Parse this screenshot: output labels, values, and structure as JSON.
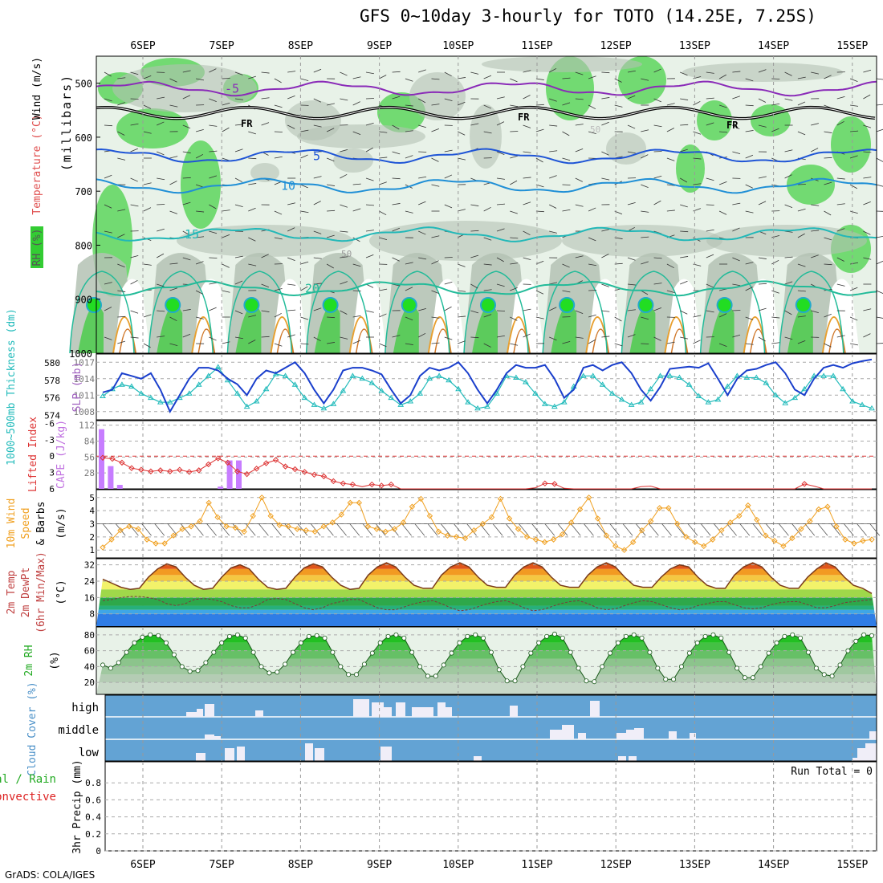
{
  "title": "GFS 0~10day 3-hourly for TOTO (14.25E, 7.25S)",
  "footer": "GrADS: COLA/IGES",
  "run_total_label": "Run Total = 0",
  "colors": {
    "rh_green": "#33cc33",
    "gray": "#b4c2b4",
    "pale": "#e8f2e8",
    "cloud_blue": "#63a3d4",
    "sky_blue": "#3f9ee6",
    "lifted_index": "#dd3333",
    "cape": "#c77dff",
    "slp": "#1a3fcc",
    "thickness": "#22bbbb",
    "wind_speed": "#f0a020"
  },
  "chart_data": [
    {
      "type": "heatmap",
      "panel": "upper-air",
      "x_dates": [
        "6SEP",
        "7SEP",
        "8SEP",
        "9SEP",
        "10SEP",
        "11SEP",
        "12SEP",
        "13SEP",
        "14SEP",
        "15SEP"
      ],
      "ylabel_series": [
        "RH (%)",
        "Temperature (°C)",
        "Wind (m/s)"
      ],
      "ylabel_units": "(millibars)",
      "yticks": [
        500,
        600,
        700,
        800,
        900,
        1000
      ],
      "ylim": [
        1000,
        450
      ],
      "freezing_label": "FR",
      "rh_contour_labels": [
        "50",
        "50"
      ],
      "temperature_isotherms": [
        {
          "value": -5,
          "label": "-5",
          "pressure": 510
        },
        {
          "value": 5,
          "label": "5",
          "pressure": 635
        },
        {
          "value": 10,
          "label": "10",
          "pressure": 690
        },
        {
          "value": 15,
          "label": "15",
          "pressure": 780
        },
        {
          "value": 20,
          "label": "20",
          "pressure": 880
        }
      ]
    },
    {
      "type": "line",
      "panel": "slp-thickness",
      "ylabel_left": "1000~500mb Thickness (dm)",
      "ylabel_right": "SLP (mb)",
      "yticks_left": [
        574,
        576,
        578,
        580
      ],
      "yticks_right": [
        1008,
        1011,
        1014,
        1017
      ],
      "series": [
        {
          "name": "SLP (mb)",
          "values": [
            1011.5,
            1012,
            1015,
            1014.5,
            1014,
            1015,
            1012,
            1008,
            1011,
            1014,
            1016,
            1016,
            1015.5,
            1014,
            1013,
            1011,
            1014,
            1015.5,
            1015,
            1016,
            1017,
            1015,
            1012,
            1009.5,
            1012,
            1015.5,
            1016,
            1016,
            1015.5,
            1014.8,
            1012,
            1009.5,
            1011,
            1014.5,
            1016,
            1015.5,
            1016,
            1017,
            1015,
            1012,
            1009.5,
            1012,
            1015,
            1016.5,
            1016,
            1016,
            1016.5,
            1014,
            1010.5,
            1012,
            1016,
            1016.5,
            1015.5,
            1016.5,
            1017,
            1015,
            1012,
            1010,
            1012.5,
            1015.8,
            1016,
            1016.2,
            1016,
            1016.8,
            1014,
            1011,
            1014,
            1015.5,
            1015.8,
            1016.5,
            1017,
            1015,
            1012,
            1011,
            1014,
            1016,
            1016.5,
            1016,
            1016.8,
            1017.2,
            1017.5
          ]
        },
        {
          "name": "1000~500mb Thickness (dm)",
          "values": [
            576.2,
            577,
            577.5,
            577.3,
            576.5,
            576,
            575.5,
            575.5,
            576,
            576.5,
            577.5,
            578.5,
            579.5,
            578,
            576.5,
            575,
            575.6,
            577,
            578.7,
            578.5,
            577.5,
            576,
            575.2,
            574.8,
            575.3,
            576.8,
            578.5,
            578.2,
            577.7,
            576.8,
            576,
            575.2,
            575.6,
            576.5,
            578.2,
            578.5,
            578,
            577,
            575.5,
            574.8,
            575,
            576.5,
            578.5,
            578.3,
            577.8,
            576.5,
            575.3,
            575,
            575.5,
            577.3,
            578.5,
            578.5,
            577.5,
            576.5,
            575.8,
            575.2,
            575.5,
            577,
            578.5,
            578.5,
            578.3,
            577.5,
            576.2,
            575.5,
            575.8,
            577.3,
            578.5,
            578.3,
            578.3,
            577.7,
            576.3,
            575.4,
            576,
            577,
            578.5,
            578.5,
            578.5,
            577,
            575.6,
            575.2,
            574.8
          ]
        }
      ]
    },
    {
      "type": "bar",
      "panel": "stability",
      "ylabel_left": "Lifted Index",
      "ylabel_right": "CAPE (J/kg)",
      "yticks_left": [
        -6,
        -3,
        0,
        3,
        6
      ],
      "yticks_right": [
        28,
        56,
        84,
        112
      ],
      "series": [
        {
          "name": "CAPE (J/kg)",
          "values": [
            105,
            40,
            7,
            0,
            0,
            0,
            0,
            0,
            0,
            0,
            0,
            0,
            0,
            4,
            50,
            50,
            0
          ]
        },
        {
          "name": "Lifted Index",
          "values": [
            0.3,
            0.5,
            1.2,
            2.2,
            2.5,
            2.8,
            2.6,
            2.8,
            2.5,
            2.9,
            2.6,
            1.5,
            0.4,
            1.2,
            2.8,
            3.3,
            2.3,
            1.3,
            0.7,
            1.9,
            2.4,
            2.9,
            3.4,
            3.7,
            4.6,
            5.0,
            5.2,
            5.6,
            5.2,
            5.4,
            5.2,
            6.1,
            6.3,
            6.6,
            6.6,
            6.8,
            6.8,
            6.8,
            6.8,
            6.8,
            6.8,
            6.8,
            6.8,
            6.6,
            6.2,
            5.8,
            5.0,
            5.1,
            5.9,
            6.8,
            6.8,
            6.8,
            6.8,
            6.8,
            6.8,
            6.8,
            5.6,
            5.5,
            6.8,
            6.8,
            6.8,
            6.6,
            6.0,
            6.0,
            6.8,
            6.8,
            6.8,
            6.8,
            6.8,
            6.8,
            6.8,
            6.8,
            6.3,
            5.1,
            5.5,
            6.8,
            6.8,
            6.8,
            6.8,
            6.8,
            6.8
          ]
        }
      ]
    },
    {
      "type": "line",
      "panel": "10m-wind",
      "ylabel": "10m Wind Speed & Barbs (m/s)",
      "yticks": [
        1,
        2,
        3,
        4,
        5
      ],
      "series": [
        {
          "name": "10m Wind Speed",
          "values": [
            1.2,
            1.8,
            2.5,
            2.8,
            2.6,
            1.8,
            1.5,
            1.5,
            2.1,
            2.6,
            2.8,
            3.2,
            4.6,
            3.5,
            2.8,
            2.7,
            2.4,
            3.6,
            5.0,
            3.6,
            2.9,
            2.8,
            2.6,
            2.5,
            2.4,
            2.8,
            3.1,
            3.7,
            4.6,
            4.6,
            2.8,
            2.6,
            2.4,
            2.6,
            3.1,
            4.3,
            4.9,
            3.6,
            2.4,
            2.1,
            2.0,
            1.9,
            2.5,
            3.0,
            3.5,
            4.9,
            3.4,
            2.6,
            2.0,
            1.8,
            1.6,
            1.8,
            2.2,
            3.1,
            4.1,
            5.0,
            3.4,
            2.1,
            1.3,
            1.0,
            1.6,
            2.5,
            3.2,
            4.2,
            4.2,
            3.0,
            2.0,
            1.6,
            1.3,
            1.8,
            2.5,
            3.1,
            3.6,
            4.4,
            3.3,
            2.1,
            1.7,
            1.3,
            1.9,
            2.6,
            3.2,
            4.1,
            4.3,
            2.8,
            1.8,
            1.5,
            1.7,
            1.8
          ]
        }
      ]
    },
    {
      "type": "area",
      "panel": "2m-temperature",
      "ylabel": "2m Temp 2m DewPt (6hr Min/Max) (°C)",
      "yticks": [
        8,
        16,
        24,
        32
      ],
      "series": [
        {
          "name": "2m Temp",
          "values": [
            25,
            23,
            21,
            20,
            20.5,
            26,
            30,
            32.5,
            31,
            26,
            22,
            20,
            20.5,
            26,
            30.5,
            32,
            30,
            25,
            21,
            20,
            20.5,
            26,
            30.5,
            32.5,
            31,
            26,
            22,
            20,
            20.5,
            27,
            31,
            33,
            31,
            26,
            22,
            20.5,
            20.5,
            27,
            31,
            33,
            31,
            26,
            22,
            21,
            21,
            27,
            31,
            33,
            31,
            26,
            22,
            21,
            21,
            27,
            31,
            33,
            31,
            26,
            22,
            21,
            21,
            26,
            30,
            32,
            31,
            26,
            22,
            20.5,
            20.5,
            27,
            31,
            33,
            31,
            26,
            22,
            20.5,
            20.5,
            26,
            30,
            33,
            31,
            26,
            22,
            20.5,
            18
          ]
        },
        {
          "name": "2m DewPt",
          "values": [
            14.5,
            15,
            16,
            16.5,
            16.5,
            16,
            15,
            13,
            12,
            13,
            15,
            15.5,
            15,
            14,
            12,
            11,
            11,
            12.5,
            15,
            15.5,
            15,
            13,
            11,
            10,
            11,
            13,
            14,
            15,
            15,
            13,
            11,
            10,
            10,
            11.5,
            13,
            14,
            14.5,
            13,
            11,
            9.5,
            10,
            11.5,
            13,
            14,
            14.5,
            13,
            11,
            9.5,
            10,
            11.5,
            13,
            14,
            14.5,
            13,
            11,
            10,
            10.5,
            12,
            13.5,
            14.5,
            14,
            12.5,
            11,
            10,
            10.5,
            12,
            13,
            14,
            14,
            12.5,
            11,
            10.5,
            11,
            12.5,
            13.5,
            14,
            14,
            12.5,
            11,
            11,
            12,
            13.5,
            14,
            14.5,
            15
          ]
        }
      ]
    },
    {
      "type": "area",
      "panel": "2m-rh",
      "ylabel": "2m RH (%)",
      "yticks": [
        20,
        40,
        60,
        80
      ],
      "series": [
        {
          "name": "2m RH",
          "values": [
            42,
            38,
            45,
            58,
            70,
            77,
            80,
            79,
            70,
            55,
            40,
            34,
            35,
            45,
            58,
            70,
            78,
            80,
            76,
            58,
            40,
            32,
            33,
            43,
            58,
            70,
            78,
            79,
            76,
            58,
            40,
            30,
            30,
            43,
            57,
            70,
            78,
            80,
            76,
            58,
            40,
            28,
            28,
            42,
            57,
            70,
            78,
            80,
            76,
            58,
            36,
            22,
            22,
            40,
            57,
            70,
            78,
            81,
            76,
            58,
            38,
            22,
            21,
            40,
            57,
            70,
            78,
            80,
            76,
            58,
            38,
            24,
            24,
            40,
            57,
            70,
            78,
            80,
            76,
            58,
            38,
            26,
            26,
            40,
            57,
            70,
            78,
            80,
            76,
            58,
            38,
            30,
            28,
            42,
            60,
            72,
            80,
            79
          ]
        }
      ]
    },
    {
      "type": "bar",
      "panel": "cloud-cover",
      "ylabel": "Cloud Cover (%)",
      "categories": [
        "high",
        "middle",
        "low"
      ]
    },
    {
      "type": "bar",
      "panel": "precipitation",
      "ylabel_primary": "3hr Precip (mm)",
      "legend": [
        "Total / Rain",
        "Convective"
      ],
      "ylabel_lines": [
        "tal / Rain",
        "Convective"
      ],
      "yticks": [
        0,
        0.2,
        0.4,
        0.6,
        0.8
      ],
      "ylim": [
        0,
        1
      ],
      "series": [
        {
          "name": "Total / Rain",
          "values": []
        },
        {
          "name": "Convective",
          "values": []
        }
      ]
    }
  ]
}
